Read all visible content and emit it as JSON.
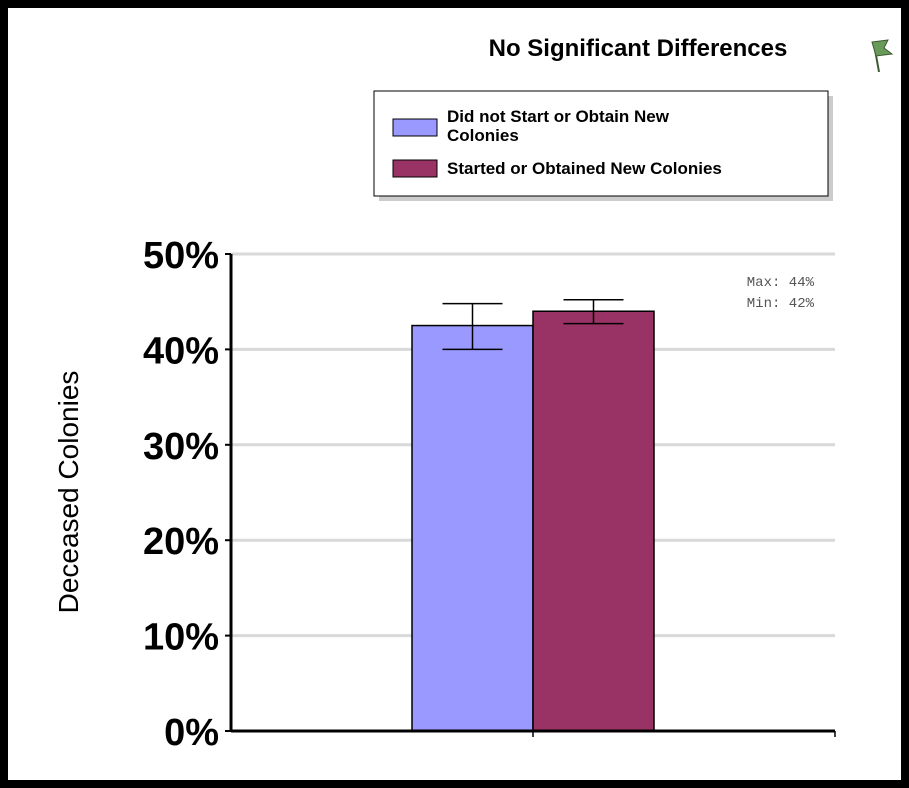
{
  "chart_data": {
    "type": "bar",
    "title": "No Significant Differences",
    "ylabel": "Deceased Colonies",
    "xlabel": "",
    "ylim": [
      0,
      50
    ],
    "yticks": [
      "0%",
      "10%",
      "20%",
      "30%",
      "40%",
      "50%"
    ],
    "ytick_values": [
      0,
      10,
      20,
      30,
      40,
      50
    ],
    "grid": true,
    "legend_position": "top-right",
    "series": [
      {
        "legend_line1": "Did not Start or Obtain New",
        "legend_line2": "Colonies",
        "value": 42.5,
        "error_low": 40.0,
        "error_high": 44.8,
        "color": "#9999ff"
      },
      {
        "legend_line1": "Started or Obtained New Colonies",
        "legend_line2": "",
        "value": 44.0,
        "error_low": 42.7,
        "error_high": 45.2,
        "color": "#993366"
      }
    ],
    "annotation": {
      "max_text": "Max: 44%",
      "min_text": "Min: 42%"
    }
  },
  "icons": {
    "corner_icon": "flag-icon"
  },
  "colors": {
    "frame": "#000000",
    "gridline": "#d9d9d9",
    "flag": "#6a9a5a"
  }
}
